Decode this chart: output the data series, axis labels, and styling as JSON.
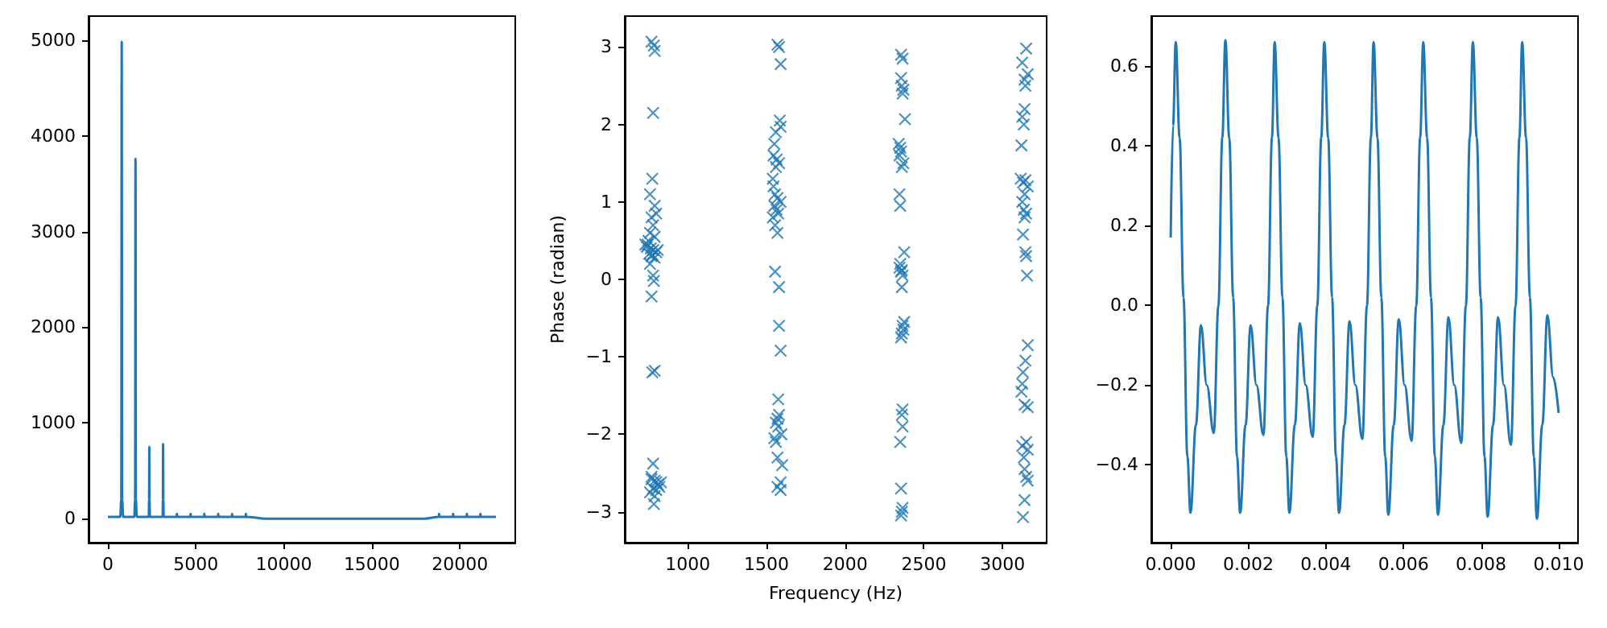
{
  "chart_data": [
    {
      "type": "line",
      "x": [
        0,
        300,
        700,
        760,
        784,
        810,
        870,
        1200,
        1500,
        1545,
        1568,
        1590,
        1640,
        2000,
        2320,
        2340,
        2352,
        2365,
        2385,
        2800,
        3110,
        3125,
        3136,
        3150,
        3170,
        3500,
        3900,
        3920,
        3940,
        4680,
        4700,
        4720,
        5460,
        5480,
        5500,
        6250,
        6270,
        6290,
        7040,
        7060,
        7080,
        7820,
        7840,
        7860,
        9000,
        12000,
        15000,
        18000,
        18800,
        18820,
        18840,
        19600,
        19620,
        19640,
        20380,
        20400,
        20420,
        21150,
        21170,
        21190,
        22050
      ],
      "series": [
        {
          "color": "#1f77b4",
          "values": [
            20,
            20,
            20,
            200,
            4980,
            200,
            20,
            20,
            20,
            200,
            3760,
            200,
            20,
            20,
            20,
            200,
            750,
            200,
            20,
            20,
            20,
            200,
            780,
            200,
            20,
            20,
            20,
            50,
            20,
            20,
            50,
            20,
            20,
            50,
            20,
            20,
            50,
            20,
            20,
            50,
            20,
            20,
            50,
            20,
            0,
            0,
            0,
            0,
            20,
            50,
            20,
            20,
            50,
            20,
            20,
            50,
            20,
            20,
            50,
            20,
            20
          ]
        }
      ],
      "xlim": [
        -1100,
        23150
      ],
      "xticks": [
        0,
        5000,
        10000,
        15000,
        20000
      ],
      "ylim": [
        -250,
        5250
      ],
      "yticks": [
        0,
        1000,
        2000,
        3000,
        4000,
        5000
      ]
    },
    {
      "type": "scatter",
      "xlabel": "Frequency (Hz)",
      "ylabel": "Phase (radian)",
      "marker": "cross",
      "x": [
        770,
        790,
        785,
        780,
        775,
        760,
        790,
        800,
        770,
        780,
        760,
        790,
        750,
        730,
        740,
        765,
        780,
        800,
        755,
        770,
        790,
        745,
        810,
        775,
        760,
        780,
        785,
        770,
        775,
        790,
        780,
        770,
        790,
        800,
        810,
        820,
        780,
        800,
        760,
        790,
        785,
        830,
        770,
        1570,
        1580,
        1590,
        1585,
        1590,
        1560,
        1550,
        1545,
        1565,
        1580,
        1560,
        1540,
        1545,
        1555,
        1570,
        1590,
        1550,
        1565,
        1575,
        1540,
        1555,
        1570,
        1555,
        1580,
        1580,
        1590,
        1575,
        1580,
        1570,
        1560,
        1575,
        1595,
        1550,
        1560,
        1570,
        1600,
        1590,
        1570,
        1590,
        2355,
        2365,
        2355,
        2360,
        2370,
        2365,
        2380,
        2340,
        2350,
        2355,
        2345,
        2370,
        2360,
        2345,
        2350,
        2375,
        2350,
        2345,
        2360,
        2355,
        2365,
        2360,
        2375,
        2365,
        2370,
        2360,
        2355,
        2365,
        2360,
        2365,
        2350,
        2355,
        2365,
        2360,
        2355,
        3150,
        3125,
        3160,
        3140,
        3145,
        3140,
        3125,
        3135,
        3120,
        3115,
        3145,
        3130,
        3160,
        3140,
        3125,
        3135,
        3150,
        3140,
        3130,
        3145,
        3150,
        3155,
        3160,
        3145,
        3130,
        3125,
        3120,
        3140,
        3160,
        3150,
        3125,
        3160,
        3135,
        3140,
        3150,
        3160,
        3140,
        3130
      ],
      "series": [
        {
          "color": "#1f77b4",
          "values": [
            3.07,
            2.95,
            3.02,
            2.15,
            1.3,
            1.1,
            0.95,
            0.85,
            0.8,
            0.7,
            0.6,
            0.55,
            0.5,
            0.45,
            0.42,
            0.4,
            0.38,
            0.35,
            0.33,
            0.3,
            0.28,
            0.45,
            0.38,
            0.32,
            0.2,
            0.05,
            -0.02,
            -0.22,
            -1.2,
            -1.18,
            -2.38,
            -2.55,
            -2.6,
            -2.62,
            -2.65,
            -2.68,
            -2.7,
            -2.72,
            -2.75,
            -2.8,
            -2.9,
            -2.62,
            -2.58,
            3.03,
            3.0,
            2.78,
            2.05,
            1.97,
            1.9,
            1.75,
            1.6,
            1.55,
            1.5,
            1.45,
            1.3,
            1.2,
            1.1,
            1.05,
            1.0,
            0.95,
            0.9,
            0.85,
            0.8,
            0.7,
            0.6,
            0.1,
            -0.1,
            -0.6,
            -0.92,
            -1.55,
            -1.75,
            -1.8,
            -1.85,
            -1.9,
            -2.0,
            -2.05,
            -2.1,
            -2.3,
            -2.4,
            -2.62,
            -2.68,
            -2.72,
            2.9,
            2.85,
            2.6,
            2.5,
            2.45,
            2.4,
            2.07,
            1.75,
            1.7,
            1.65,
            1.6,
            1.5,
            1.45,
            1.1,
            0.95,
            0.35,
            0.2,
            0.15,
            0.12,
            0.1,
            0.05,
            -0.1,
            -0.55,
            -0.6,
            -0.65,
            -0.7,
            -0.75,
            -1.68,
            -1.75,
            -1.9,
            -2.1,
            -2.7,
            -2.95,
            -3.0,
            -3.05,
            2.98,
            2.8,
            2.65,
            2.58,
            2.5,
            2.2,
            2.1,
            2.0,
            1.73,
            1.3,
            1.28,
            1.25,
            1.2,
            1.1,
            1.0,
            0.9,
            0.85,
            0.8,
            0.58,
            0.35,
            0.3,
            0.05,
            -0.85,
            -1.05,
            -1.2,
            -1.35,
            -1.45,
            -1.62,
            -1.65,
            -2.1,
            -2.15,
            -2.2,
            -2.3,
            -2.45,
            -2.55,
            -2.6,
            -2.85,
            -3.07
          ]
        }
      ],
      "xlim": [
        600,
        3280
      ],
      "xticks": [
        1000,
        1500,
        2000,
        2500,
        3000
      ],
      "ylim": [
        -3.4,
        3.4
      ],
      "yticks": [
        {
          "value": -3,
          "label": "−3"
        },
        {
          "value": -2,
          "label": "−2"
        },
        {
          "value": -1,
          "label": "−1"
        },
        0,
        1,
        2,
        3
      ]
    },
    {
      "type": "line",
      "x": [
        0,
        6e-05,
        0.00013,
        0.00023,
        0.00033,
        0.00043,
        0.00051,
        0.00065,
        0.00078,
        0.00093,
        0.00111,
        0.00123,
        0.00133,
        0.00141,
        0.00151,
        0.00161,
        0.00171,
        0.00179,
        0.00193,
        0.00206,
        0.00221,
        0.00239,
        0.00251,
        0.00261,
        0.00268,
        0.00278,
        0.00288,
        0.00298,
        0.00306,
        0.0032,
        0.00333,
        0.00348,
        0.00366,
        0.00378,
        0.00388,
        0.00396,
        0.00406,
        0.00416,
        0.00426,
        0.00434,
        0.00448,
        0.00461,
        0.00476,
        0.00494,
        0.00506,
        0.00516,
        0.00523,
        0.00533,
        0.00543,
        0.00553,
        0.00561,
        0.00575,
        0.00588,
        0.00603,
        0.00621,
        0.00633,
        0.00643,
        0.00651,
        0.00661,
        0.00671,
        0.00681,
        0.00689,
        0.00703,
        0.00716,
        0.00731,
        0.00749,
        0.00761,
        0.00771,
        0.00779,
        0.00789,
        0.00799,
        0.00809,
        0.00817,
        0.00831,
        0.00844,
        0.00859,
        0.00877,
        0.00889,
        0.00899,
        0.00906,
        0.00916,
        0.00926,
        0.00936,
        0.00944,
        0.00958,
        0.00971,
        0.00986,
        0.01
      ],
      "series": [
        {
          "color": "#1f77b4",
          "values": [
            0.17,
            0.45,
            0.66,
            0.42,
            0.02,
            -0.38,
            -0.52,
            -0.3,
            -0.05,
            -0.2,
            -0.32,
            0,
            0.42,
            0.665,
            0.42,
            0.02,
            -0.38,
            -0.52,
            -0.3,
            -0.05,
            -0.2,
            -0.325,
            0,
            0.42,
            0.66,
            0.42,
            0.02,
            -0.38,
            -0.52,
            -0.3,
            -0.045,
            -0.2,
            -0.33,
            0,
            0.42,
            0.66,
            0.42,
            0.02,
            -0.38,
            -0.52,
            -0.3,
            -0.04,
            -0.2,
            -0.335,
            0,
            0.42,
            0.66,
            0.42,
            0.02,
            -0.38,
            -0.525,
            -0.3,
            -0.035,
            -0.2,
            -0.34,
            0,
            0.42,
            0.66,
            0.42,
            0.02,
            -0.38,
            -0.525,
            -0.3,
            -0.03,
            -0.2,
            -0.345,
            0,
            0.42,
            0.66,
            0.42,
            0.02,
            -0.38,
            -0.53,
            -0.3,
            -0.03,
            -0.2,
            -0.35,
            0,
            0.42,
            0.66,
            0.42,
            0.02,
            -0.38,
            -0.535,
            -0.3,
            -0.025,
            -0.18,
            -0.27
          ]
        }
      ],
      "xlim": [
        -0.0005,
        0.0105
      ],
      "xticks": [
        {
          "value": 0,
          "label": "0.000"
        },
        {
          "value": 0.002,
          "label": "0.002"
        },
        {
          "value": 0.004,
          "label": "0.004"
        },
        {
          "value": 0.006,
          "label": "0.006"
        },
        {
          "value": 0.008,
          "label": "0.008"
        },
        {
          "value": 0.01,
          "label": "0.010"
        }
      ],
      "ylim": [
        -0.595,
        0.725
      ],
      "yticks": [
        {
          "value": -0.4,
          "label": "−0.4"
        },
        {
          "value": -0.2,
          "label": "−0.2"
        },
        {
          "value": 0,
          "label": "0.0"
        },
        {
          "value": 0.2,
          "label": "0.2"
        },
        {
          "value": 0.4,
          "label": "0.4"
        },
        {
          "value": 0.6,
          "label": "0.6"
        }
      ]
    }
  ]
}
